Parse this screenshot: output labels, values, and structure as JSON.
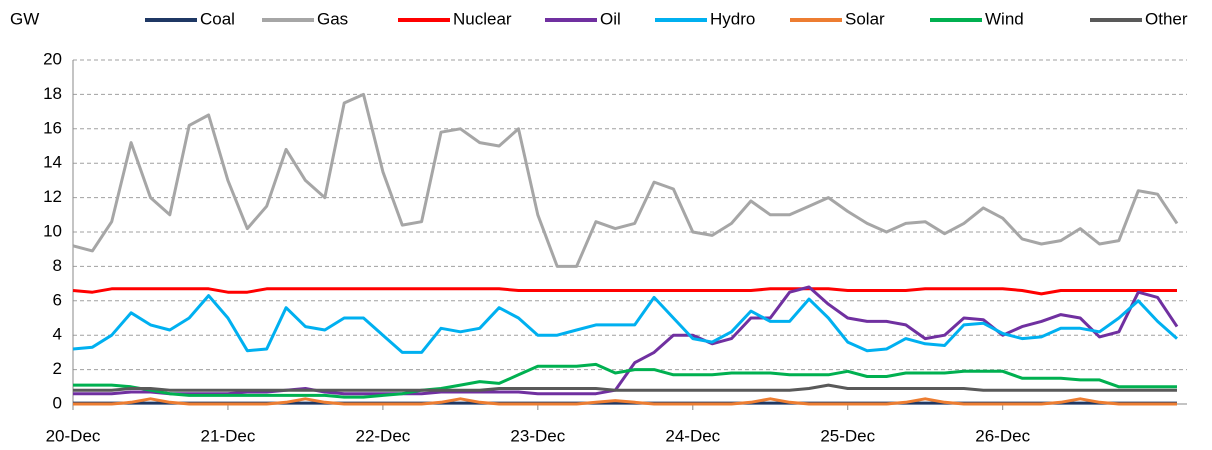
{
  "chart_data": {
    "type": "line",
    "y_label": "GW",
    "categories": [
      "20-Dec",
      null,
      null,
      null,
      null,
      null,
      null,
      null,
      "21-Dec",
      null,
      null,
      null,
      null,
      null,
      null,
      null,
      "22-Dec",
      null,
      null,
      null,
      null,
      null,
      null,
      null,
      "23-Dec",
      null,
      null,
      null,
      null,
      null,
      null,
      null,
      "24-Dec",
      null,
      null,
      null,
      null,
      null,
      null,
      null,
      "25-Dec",
      null,
      null,
      null,
      null,
      null,
      null,
      null,
      "26-Dec",
      null,
      null,
      null,
      null,
      null,
      null,
      null,
      null,
      null
    ],
    "ylim": [
      0,
      20
    ],
    "yticks": [
      0,
      2,
      4,
      6,
      8,
      10,
      12,
      14,
      16,
      18,
      20
    ],
    "grid": true,
    "series": [
      {
        "name": "Coal",
        "color": "#1f3864",
        "values": [
          0.05,
          0.05,
          0.05,
          0.05,
          0.05,
          0.05,
          0.05,
          0.05,
          0.05,
          0.05,
          0.05,
          0.05,
          0.05,
          0.05,
          0.05,
          0.05,
          0.05,
          0.05,
          0.05,
          0.05,
          0.05,
          0.05,
          0.05,
          0.05,
          0.05,
          0.05,
          0.05,
          0.05,
          0.05,
          0.05,
          0.05,
          0.05,
          0.05,
          0.05,
          0.05,
          0.05,
          0.05,
          0.05,
          0.05,
          0.05,
          0.05,
          0.05,
          0.05,
          0.05,
          0.05,
          0.05,
          0.05,
          0.05,
          0.05,
          0.05,
          0.05,
          0.05,
          0.05,
          0.05,
          0.05,
          0.05,
          0.05,
          0.05
        ]
      },
      {
        "name": "Gas",
        "color": "#a6a6a6",
        "values": [
          9.2,
          8.9,
          10.6,
          15.2,
          12.0,
          11.0,
          16.2,
          16.8,
          13.0,
          10.2,
          11.5,
          14.8,
          13.0,
          12.0,
          17.5,
          18.0,
          13.5,
          10.4,
          10.6,
          15.8,
          16.0,
          15.2,
          15.0,
          16.0,
          11.0,
          8.0,
          8.0,
          10.6,
          10.2,
          10.5,
          12.9,
          12.5,
          10.0,
          9.8,
          10.5,
          11.8,
          11.0,
          11.0,
          11.5,
          12.0,
          11.2,
          10.5,
          10.0,
          10.5,
          10.6,
          9.9,
          10.5,
          11.4,
          10.8,
          9.6,
          9.3,
          9.5,
          10.2,
          9.3,
          9.5,
          12.4,
          12.2,
          10.5
        ]
      },
      {
        "name": "Nuclear",
        "color": "#ff0000",
        "values": [
          6.6,
          6.5,
          6.7,
          6.7,
          6.7,
          6.7,
          6.7,
          6.7,
          6.5,
          6.5,
          6.7,
          6.7,
          6.7,
          6.7,
          6.7,
          6.7,
          6.7,
          6.7,
          6.7,
          6.7,
          6.7,
          6.7,
          6.7,
          6.6,
          6.6,
          6.6,
          6.6,
          6.6,
          6.6,
          6.6,
          6.6,
          6.6,
          6.6,
          6.6,
          6.6,
          6.6,
          6.7,
          6.7,
          6.7,
          6.7,
          6.6,
          6.6,
          6.6,
          6.6,
          6.7,
          6.7,
          6.7,
          6.7,
          6.7,
          6.6,
          6.4,
          6.6,
          6.6,
          6.6,
          6.6,
          6.6,
          6.6,
          6.6
        ]
      },
      {
        "name": "Oil",
        "color": "#7030a0",
        "values": [
          0.6,
          0.6,
          0.6,
          0.7,
          0.7,
          0.6,
          0.6,
          0.6,
          0.6,
          0.7,
          0.7,
          0.8,
          0.9,
          0.7,
          0.6,
          0.6,
          0.6,
          0.6,
          0.6,
          0.7,
          0.7,
          0.7,
          0.7,
          0.7,
          0.6,
          0.6,
          0.6,
          0.6,
          0.8,
          2.4,
          3.0,
          4.0,
          4.0,
          3.5,
          3.8,
          5.0,
          5.0,
          6.5,
          6.8,
          5.8,
          5.0,
          4.8,
          4.8,
          4.6,
          3.8,
          4.0,
          5.0,
          4.9,
          4.0,
          4.5,
          4.8,
          5.2,
          5.0,
          3.9,
          4.2,
          6.5,
          6.2,
          4.5
        ]
      },
      {
        "name": "Hydro",
        "color": "#00b0f0",
        "values": [
          3.2,
          3.3,
          4.0,
          5.3,
          4.6,
          4.3,
          5.0,
          6.3,
          5.0,
          3.1,
          3.2,
          5.6,
          4.5,
          4.3,
          5.0,
          5.0,
          4.0,
          3.0,
          3.0,
          4.4,
          4.2,
          4.4,
          5.6,
          5.0,
          4.0,
          4.0,
          4.3,
          4.6,
          4.6,
          4.6,
          6.2,
          5.0,
          3.8,
          3.6,
          4.2,
          5.4,
          4.8,
          4.8,
          6.1,
          5.0,
          3.6,
          3.1,
          3.2,
          3.8,
          3.5,
          3.4,
          4.6,
          4.7,
          4.1,
          3.8,
          3.9,
          4.4,
          4.4,
          4.2,
          5.0,
          6.0,
          4.8,
          3.8
        ]
      },
      {
        "name": "Solar",
        "color": "#ed7d31",
        "values": [
          0,
          0,
          0,
          0.1,
          0.3,
          0.1,
          0,
          0,
          0,
          0,
          0,
          0.1,
          0.3,
          0.1,
          0,
          0,
          0,
          0,
          0,
          0.1,
          0.3,
          0.1,
          0,
          0,
          0,
          0,
          0,
          0.1,
          0.2,
          0.1,
          0,
          0,
          0,
          0,
          0,
          0.1,
          0.3,
          0.1,
          0,
          0,
          0,
          0,
          0,
          0.1,
          0.3,
          0.1,
          0,
          0,
          0,
          0,
          0,
          0.1,
          0.3,
          0.1,
          0,
          0,
          0,
          0
        ]
      },
      {
        "name": "Wind",
        "color": "#00b050",
        "values": [
          1.1,
          1.1,
          1.1,
          1.0,
          0.8,
          0.6,
          0.5,
          0.5,
          0.5,
          0.5,
          0.5,
          0.5,
          0.5,
          0.5,
          0.4,
          0.4,
          0.5,
          0.6,
          0.8,
          0.9,
          1.1,
          1.3,
          1.2,
          1.7,
          2.2,
          2.2,
          2.2,
          2.3,
          1.8,
          2.0,
          2.0,
          1.7,
          1.7,
          1.7,
          1.8,
          1.8,
          1.8,
          1.7,
          1.7,
          1.7,
          1.9,
          1.6,
          1.6,
          1.8,
          1.8,
          1.8,
          1.9,
          1.9,
          1.9,
          1.5,
          1.5,
          1.5,
          1.4,
          1.4,
          1.0,
          1.0,
          1.0,
          1.0
        ]
      },
      {
        "name": "Other",
        "color": "#595959",
        "values": [
          0.8,
          0.8,
          0.8,
          0.9,
          0.9,
          0.8,
          0.8,
          0.8,
          0.8,
          0.8,
          0.8,
          0.8,
          0.8,
          0.8,
          0.8,
          0.8,
          0.8,
          0.8,
          0.8,
          0.8,
          0.8,
          0.8,
          0.9,
          0.9,
          0.9,
          0.9,
          0.9,
          0.9,
          0.8,
          0.8,
          0.8,
          0.8,
          0.8,
          0.8,
          0.8,
          0.8,
          0.8,
          0.8,
          0.9,
          1.1,
          0.9,
          0.9,
          0.9,
          0.9,
          0.9,
          0.9,
          0.9,
          0.8,
          0.8,
          0.8,
          0.8,
          0.8,
          0.8,
          0.8,
          0.8,
          0.8,
          0.8,
          0.8
        ]
      }
    ]
  }
}
